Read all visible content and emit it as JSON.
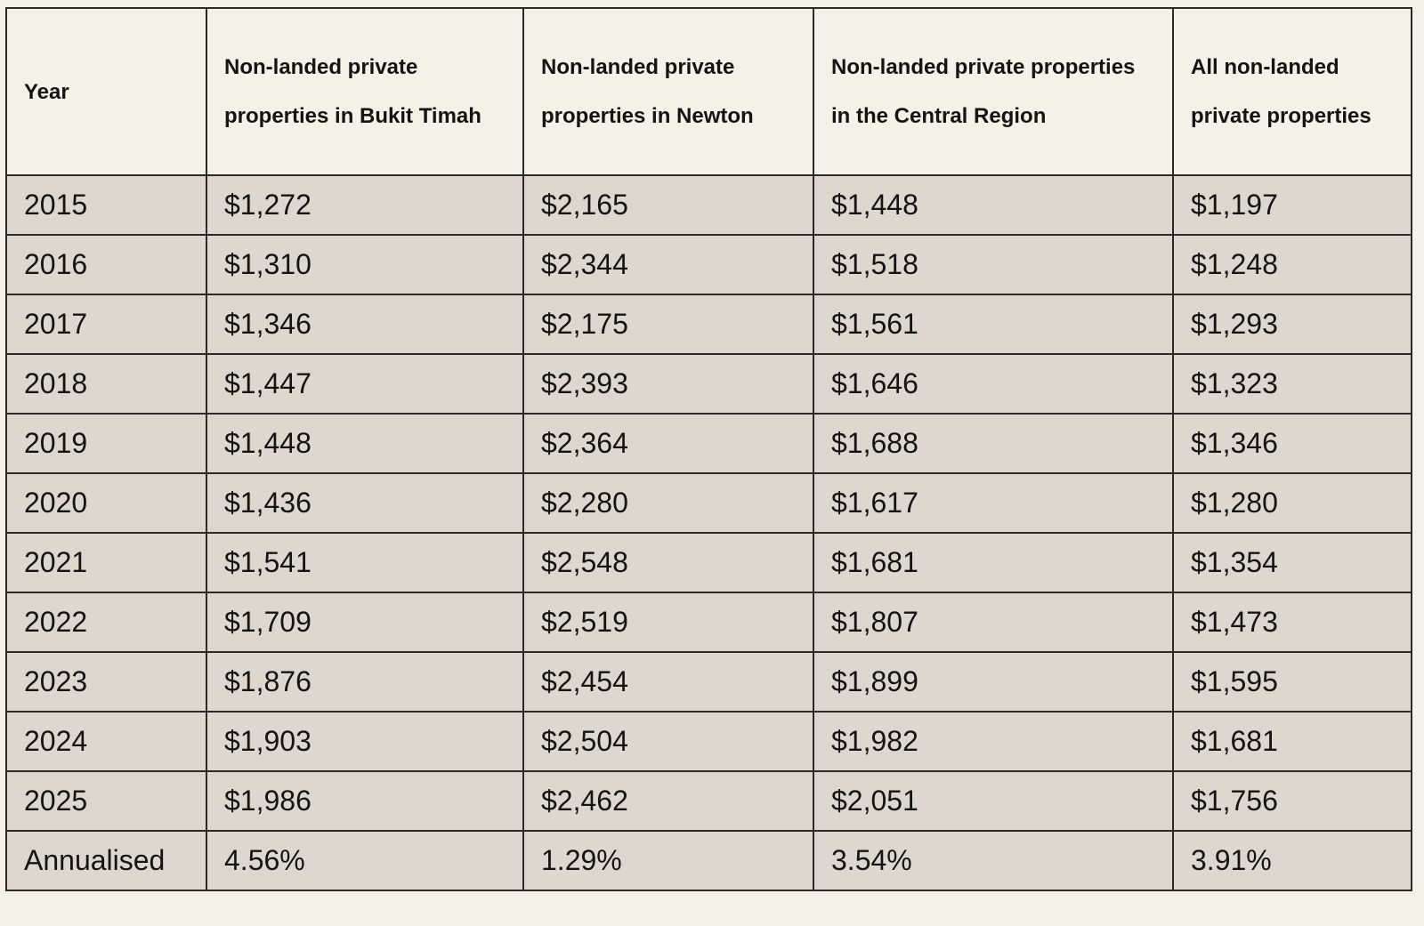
{
  "table": {
    "headers": [
      "Year",
      "Non-landed private properties in Bukit Timah",
      "Non-landed private properties in Newton",
      "Non-landed private properties in the Central Region",
      "All non-landed private properties"
    ],
    "rows": [
      [
        "2015",
        "$1,272",
        "$2,165",
        "$1,448",
        "$1,197"
      ],
      [
        "2016",
        "$1,310",
        "$2,344",
        "$1,518",
        "$1,248"
      ],
      [
        "2017",
        "$1,346",
        "$2,175",
        "$1,561",
        "$1,293"
      ],
      [
        "2018",
        "$1,447",
        "$2,393",
        "$1,646",
        "$1,323"
      ],
      [
        "2019",
        "$1,448",
        "$2,364",
        "$1,688",
        "$1,346"
      ],
      [
        "2020",
        "$1,436",
        "$2,280",
        "$1,617",
        "$1,280"
      ],
      [
        "2021",
        "$1,541",
        "$2,548",
        "$1,681",
        "$1,354"
      ],
      [
        "2022",
        "$1,709",
        "$2,519",
        "$1,807",
        "$1,473"
      ],
      [
        "2023",
        "$1,876",
        "$2,454",
        "$1,899",
        "$1,595"
      ],
      [
        "2024",
        "$1,903",
        "$2,504",
        "$1,982",
        "$1,681"
      ],
      [
        "2025",
        "$1,986",
        "$2,462",
        "$2,051",
        "$1,756"
      ],
      [
        "Annualised",
        "4.56%",
        "1.29%",
        "3.54%",
        "3.91%"
      ]
    ]
  },
  "colors": {
    "page_background": "#f6f1e6",
    "header_background": "#f6f1e6",
    "body_background": "#ddd7ce",
    "border": "#2a2a2a",
    "text": "#141414"
  }
}
